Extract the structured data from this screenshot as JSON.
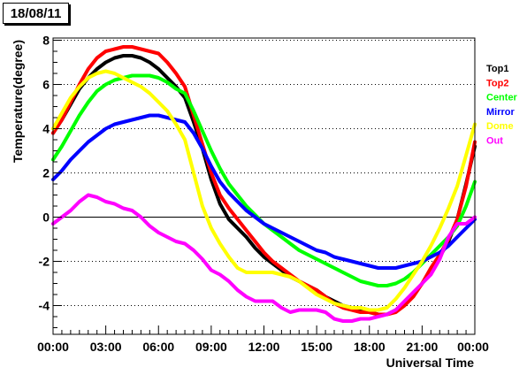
{
  "chart_data": {
    "type": "line",
    "title": "18/08/11",
    "xlabel": "Universal Time",
    "ylabel": "Temperature(degree)",
    "xlim": [
      0,
      24
    ],
    "ylim": [
      -5.3,
      8.1
    ],
    "x_ticks": [
      0,
      3,
      6,
      9,
      12,
      15,
      18,
      21,
      24
    ],
    "x_tick_labels": [
      "00:00",
      "03:00",
      "06:00",
      "09:00",
      "12:00",
      "15:00",
      "18:00",
      "21:00",
      "00:00"
    ],
    "y_ticks": [
      -4,
      -2,
      0,
      2,
      4,
      6,
      8
    ],
    "y_tick_labels": [
      "-4",
      "-2",
      "0",
      "2",
      "4",
      "6",
      "8"
    ],
    "grid": "horizontal dotted",
    "legend": "right",
    "x": [
      0,
      0.5,
      1,
      1.5,
      2,
      2.5,
      3,
      3.5,
      4,
      4.5,
      5,
      5.5,
      6,
      6.5,
      7,
      7.5,
      8,
      8.5,
      9,
      9.5,
      10,
      10.5,
      11,
      11.5,
      12,
      12.5,
      13,
      13.5,
      14,
      14.5,
      15,
      15.5,
      16,
      16.5,
      17,
      17.5,
      18,
      18.5,
      19,
      19.5,
      20,
      20.5,
      21,
      21.5,
      22,
      22.5,
      23,
      23.5,
      24
    ],
    "series": [
      {
        "name": "Top1",
        "color": "#000000",
        "values": [
          3.8,
          4.4,
          5.1,
          5.8,
          6.3,
          6.7,
          7.0,
          7.2,
          7.3,
          7.3,
          7.2,
          7.0,
          6.7,
          6.3,
          5.9,
          5.4,
          4.3,
          3.1,
          1.7,
          0.6,
          -0.1,
          -0.5,
          -0.9,
          -1.4,
          -1.8,
          -2.1,
          -2.4,
          -2.7,
          -2.9,
          -3.1,
          -3.3,
          -3.6,
          -3.8,
          -4.0,
          -4.1,
          -4.2,
          -4.3,
          -4.4,
          -4.4,
          -4.2,
          -3.9,
          -3.5,
          -3.0,
          -2.4,
          -1.8,
          -1.1,
          -0.1,
          1.5,
          3.2
        ]
      },
      {
        "name": "Top2",
        "color": "#ff0000",
        "values": [
          3.8,
          4.4,
          5.2,
          6.0,
          6.7,
          7.2,
          7.5,
          7.6,
          7.7,
          7.7,
          7.6,
          7.5,
          7.4,
          7.0,
          6.5,
          5.9,
          4.6,
          3.3,
          2.0,
          1.0,
          0.4,
          -0.1,
          -0.6,
          -1.1,
          -1.6,
          -2.0,
          -2.3,
          -2.6,
          -2.9,
          -3.1,
          -3.3,
          -3.6,
          -3.9,
          -4.1,
          -4.2,
          -4.3,
          -4.3,
          -4.4,
          -4.4,
          -4.3,
          -4.0,
          -3.6,
          -3.0,
          -2.3,
          -1.7,
          -1.0,
          -0.1,
          1.4,
          3.4
        ]
      },
      {
        "name": "Center",
        "color": "#00ff00",
        "values": [
          2.6,
          3.2,
          3.9,
          4.6,
          5.2,
          5.7,
          6.0,
          6.2,
          6.3,
          6.4,
          6.4,
          6.4,
          6.3,
          6.1,
          5.8,
          5.6,
          4.8,
          3.9,
          3.0,
          2.2,
          1.5,
          1.0,
          0.5,
          0.1,
          -0.3,
          -0.6,
          -0.9,
          -1.2,
          -1.5,
          -1.7,
          -1.9,
          -2.1,
          -2.3,
          -2.5,
          -2.7,
          -2.9,
          -3.0,
          -3.1,
          -3.1,
          -3.0,
          -2.8,
          -2.5,
          -2.1,
          -1.7,
          -1.3,
          -0.9,
          -0.4,
          0.5,
          1.6
        ]
      },
      {
        "name": "Mirror",
        "color": "#0000ff",
        "values": [
          1.7,
          2.1,
          2.6,
          3.0,
          3.4,
          3.7,
          4.0,
          4.2,
          4.3,
          4.4,
          4.5,
          4.6,
          4.6,
          4.5,
          4.4,
          4.3,
          3.8,
          3.1,
          2.3,
          1.6,
          1.1,
          0.7,
          0.3,
          0.0,
          -0.3,
          -0.5,
          -0.7,
          -0.9,
          -1.1,
          -1.3,
          -1.5,
          -1.6,
          -1.8,
          -1.9,
          -2.0,
          -2.1,
          -2.2,
          -2.3,
          -2.3,
          -2.3,
          -2.2,
          -2.1,
          -2.0,
          -1.8,
          -1.6,
          -1.3,
          -0.9,
          -0.5,
          -0.1
        ]
      },
      {
        "name": "Dome",
        "color": "#ffff00",
        "values": [
          4.0,
          4.7,
          5.4,
          5.9,
          6.3,
          6.5,
          6.6,
          6.5,
          6.3,
          6.1,
          5.9,
          5.6,
          5.2,
          4.8,
          4.2,
          3.5,
          2.0,
          0.5,
          -0.5,
          -1.2,
          -1.8,
          -2.3,
          -2.5,
          -2.5,
          -2.5,
          -2.5,
          -2.6,
          -2.7,
          -2.9,
          -3.2,
          -3.5,
          -3.7,
          -3.9,
          -4.0,
          -4.1,
          -4.1,
          -4.2,
          -4.2,
          -4.1,
          -3.7,
          -3.2,
          -2.6,
          -2.0,
          -1.3,
          -0.5,
          0.4,
          1.4,
          2.8,
          4.2
        ]
      },
      {
        "name": "Out",
        "color": "#ff00ff",
        "values": [
          -0.3,
          0.0,
          0.3,
          0.7,
          1.0,
          0.9,
          0.7,
          0.6,
          0.4,
          0.3,
          0.0,
          -0.4,
          -0.7,
          -0.9,
          -1.1,
          -1.2,
          -1.5,
          -1.9,
          -2.4,
          -2.6,
          -2.9,
          -3.3,
          -3.6,
          -3.8,
          -3.8,
          -3.8,
          -4.1,
          -4.3,
          -4.2,
          -4.2,
          -4.2,
          -4.3,
          -4.6,
          -4.7,
          -4.7,
          -4.6,
          -4.6,
          -4.5,
          -4.4,
          -4.2,
          -3.8,
          -3.4,
          -3.0,
          -2.6,
          -1.9,
          -0.9,
          -0.3,
          -0.3,
          0.0
        ]
      }
    ]
  }
}
